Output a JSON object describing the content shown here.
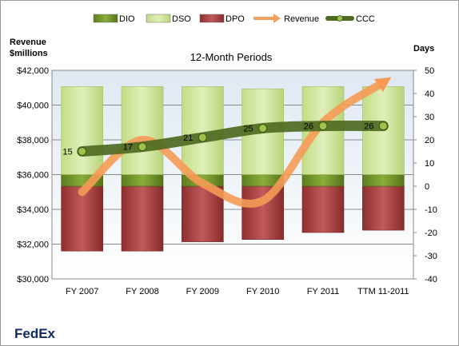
{
  "chart_data": {
    "type": "bar",
    "title": "12-Month Periods",
    "company": "FedEx",
    "y_left_label": [
      "Revenue",
      "$millions"
    ],
    "y_right_label": "Days",
    "categories": [
      "FY 2007",
      "FY 2008",
      "FY 2009",
      "FY 2010",
      "FY 2011",
      "TTM 11-2011"
    ],
    "left_axis": {
      "min": 30000,
      "max": 42000,
      "step": 2000,
      "tick_labels": [
        "$30,000",
        "$32,000",
        "$34,000",
        "$36,000",
        "$38,000",
        "$40,000",
        "$42,000"
      ]
    },
    "right_axis": {
      "min": -40,
      "max": 50,
      "step": 10,
      "tick_labels": [
        "-40",
        "-30",
        "-20",
        "-10",
        "0",
        "10",
        "20",
        "30",
        "40",
        "50"
      ]
    },
    "legend": {
      "position": "top",
      "entries": [
        {
          "name": "DIO",
          "kind": "bar",
          "color": "#6b8e23"
        },
        {
          "name": "DSO",
          "kind": "bar",
          "color": "#cfe3a0"
        },
        {
          "name": "DPO",
          "kind": "bar",
          "color": "#a83c3c"
        },
        {
          "name": "Revenue",
          "kind": "arrow",
          "color": "#f5a05a"
        },
        {
          "name": "CCC",
          "kind": "line",
          "color": "#5a7a28"
        }
      ]
    },
    "series": [
      {
        "name": "DIO",
        "axis": "right",
        "values": [
          5,
          5,
          5,
          5,
          5,
          5
        ]
      },
      {
        "name": "DSO",
        "axis": "right",
        "values": [
          38,
          38,
          38,
          37,
          38,
          38
        ]
      },
      {
        "name": "DPO",
        "axis": "right",
        "values": [
          -28,
          -28,
          -24,
          -23,
          -20,
          -19
        ]
      },
      {
        "name": "Revenue",
        "axis": "left",
        "values": [
          35000,
          38000,
          35500,
          34500,
          39000,
          41300
        ]
      },
      {
        "name": "CCC",
        "axis": "right",
        "values": [
          15,
          17,
          21,
          25,
          26,
          26
        ],
        "data_labels": [
          "15",
          "17",
          "21",
          "25",
          "26",
          "26"
        ]
      }
    ],
    "colors": {
      "dio": "#6b8e23",
      "dso": "#cfe3a0",
      "dpo": "#a83c3c",
      "revenue": "#f5a05a",
      "ccc": "#4e6b21",
      "plot_bg_top": "#e3eaf3",
      "plot_bg_bottom": "#ffffff"
    },
    "grid": true
  }
}
